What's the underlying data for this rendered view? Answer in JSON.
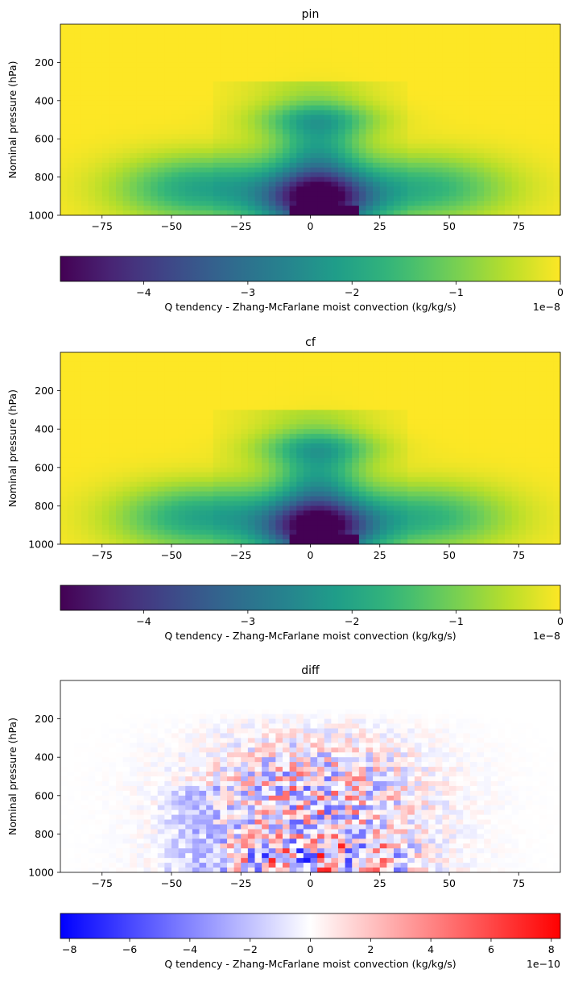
{
  "chart_data": [
    {
      "type": "heatmap",
      "title": "pin",
      "ylabel": "Nominal pressure (hPa)",
      "xlabel": "",
      "xlim": [
        -90,
        90
      ],
      "ylim": [
        1000,
        0
      ],
      "xticks": [
        -75,
        -50,
        -25,
        0,
        25,
        50,
        75
      ],
      "yticks": [
        200,
        400,
        600,
        800,
        1000
      ],
      "colormap": "viridis",
      "colorbar": {
        "label": "Q tendency - Zhang-McFarlane moist convection (kg/kg/s)",
        "range": [
          -4.8,
          0
        ],
        "ticks": [
          -4,
          -3,
          -2,
          -1,
          0
        ],
        "offset_text": "1e−8",
        "orientation": "horizontal"
      },
      "description_values": {
        "max_magnitude": -4.8e-08,
        "strongest_region": "tropics near surface (~0 to 10, 900-1000 hPa)"
      }
    },
    {
      "type": "heatmap",
      "title": "cf",
      "ylabel": "Nominal pressure (hPa)",
      "xlabel": "",
      "xlim": [
        -90,
        90
      ],
      "ylim": [
        1000,
        0
      ],
      "xticks": [
        -75,
        -50,
        -25,
        0,
        25,
        50,
        75
      ],
      "yticks": [
        200,
        400,
        600,
        800,
        1000
      ],
      "colormap": "viridis",
      "colorbar": {
        "label": "Q tendency - Zhang-McFarlane moist convection (kg/kg/s)",
        "range": [
          -4.8,
          0
        ],
        "ticks": [
          -4,
          -3,
          -2,
          -1,
          0
        ],
        "offset_text": "1e−8",
        "orientation": "horizontal"
      }
    },
    {
      "type": "heatmap",
      "title": "diff",
      "ylabel": "Nominal pressure (hPa)",
      "xlabel": "",
      "xlim": [
        -90,
        90
      ],
      "ylim": [
        1000,
        0
      ],
      "xticks": [
        -75,
        -50,
        -25,
        0,
        25,
        50,
        75
      ],
      "yticks": [
        200,
        400,
        600,
        800,
        1000
      ],
      "colormap": "bwr",
      "colorbar": {
        "label": "Q tendency - Zhang-McFarlane moist convection (kg/kg/s)",
        "range": [
          -8.3,
          8.3
        ],
        "ticks": [
          -8,
          -6,
          -4,
          -2,
          0,
          2,
          4,
          6,
          8
        ],
        "offset_text": "1e−10",
        "orientation": "horizontal"
      }
    }
  ],
  "colors": {
    "viridis": [
      "#440154",
      "#482878",
      "#3e4989",
      "#31688e",
      "#26828e",
      "#1f9e89",
      "#35b779",
      "#6ece58",
      "#b5de2b",
      "#fde725"
    ],
    "bwr": [
      "#0000ff",
      "#ffffff",
      "#ff0000"
    ]
  }
}
